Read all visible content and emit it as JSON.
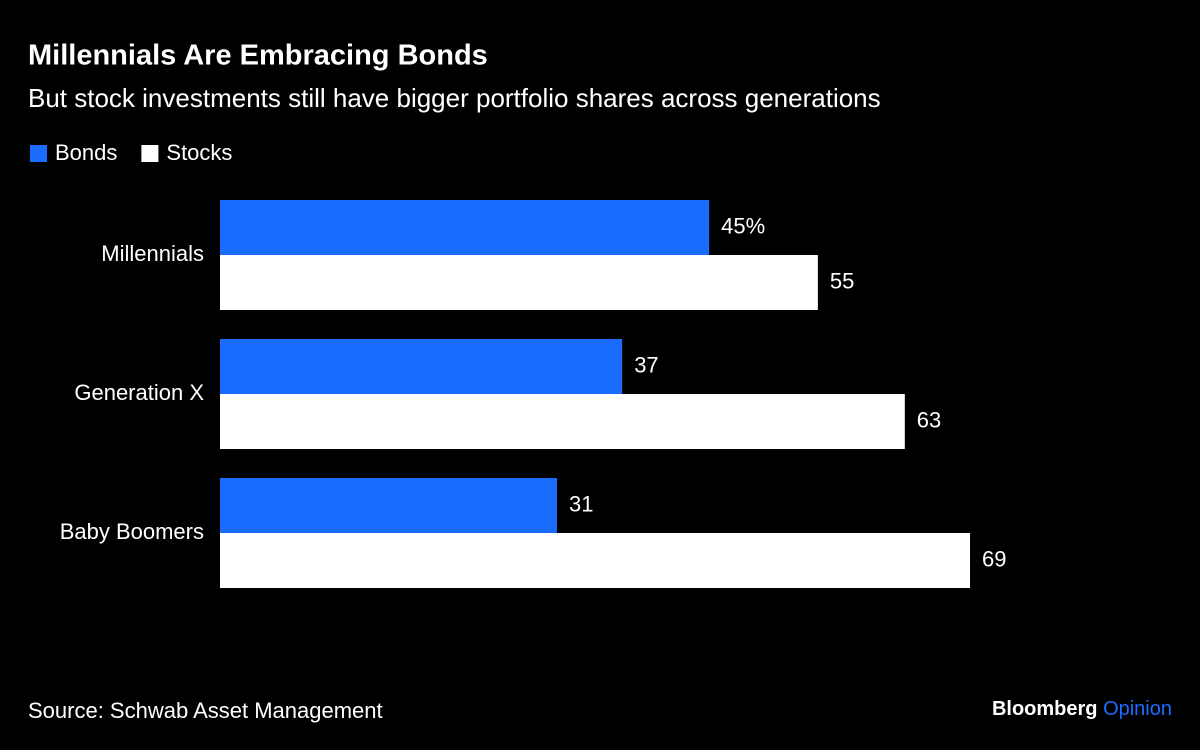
{
  "chart_data": {
    "type": "bar",
    "orientation": "horizontal",
    "title": "Millennials Are Embracing Bonds",
    "subtitle": "But stock investments still have bigger portfolio shares across generations",
    "categories": [
      "Millennials",
      "Generation X",
      "Baby Boomers"
    ],
    "series": [
      {
        "name": "Bonds",
        "color": "#1a6cff",
        "values": [
          45,
          37,
          31
        ],
        "value_labels": [
          "45%",
          "37",
          "31"
        ]
      },
      {
        "name": "Stocks",
        "color": "#ffffff",
        "values": [
          55,
          63,
          69
        ],
        "value_labels": [
          "55",
          "63",
          "69"
        ]
      }
    ],
    "source": "Source: Schwab Asset Management",
    "brand": "Bloomberg",
    "brand_suffix": "Opinion",
    "brand_suffix_color": "#1a6cff"
  }
}
